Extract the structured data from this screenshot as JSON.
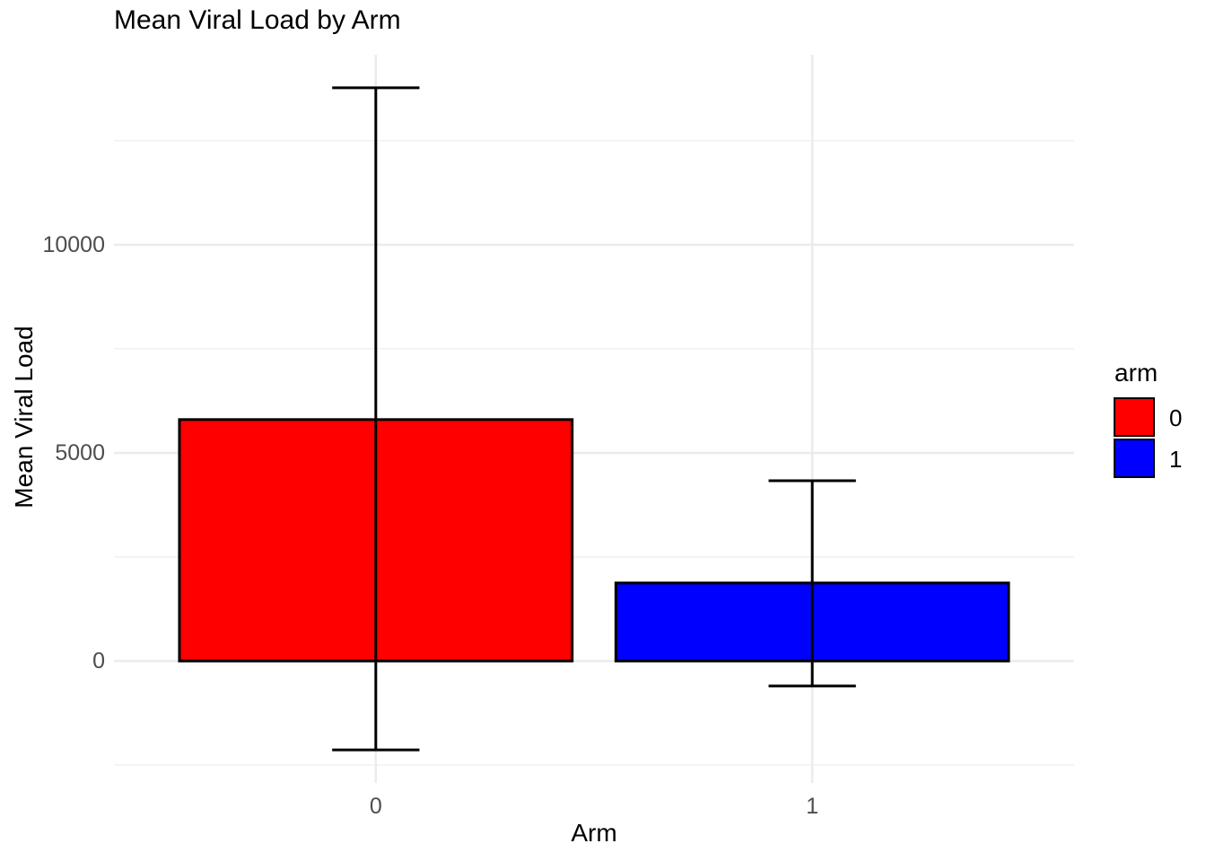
{
  "chart_data": {
    "type": "bar",
    "title": "Mean Viral Load by Arm",
    "xlabel": "Arm",
    "ylabel": "Mean Viral Load",
    "categories": [
      "0",
      "1"
    ],
    "values": [
      5800,
      1875
    ],
    "error_low": [
      -2135,
      -600
    ],
    "error_high": [
      13770,
      4330
    ],
    "bar_colors": [
      "#ff0000",
      "#0000ff"
    ],
    "ylim": [
      -2930,
      14565
    ],
    "y_major_ticks": [
      0,
      5000,
      10000
    ],
    "y_tick_labels": [
      "0",
      "5000",
      "10000"
    ],
    "y_minor_ticks": [
      -2500,
      2500,
      7500,
      12500
    ],
    "x_tick_labels": [
      "0",
      "1"
    ],
    "bar_width_frac": 0.9,
    "errorbar_cap_frac": 0.2,
    "grid": "horizontal major+minor, vertical major at category centers; no axis lines, white background",
    "legend": {
      "title": "arm",
      "position": "right",
      "entries": [
        {
          "label": "0",
          "color": "#ff0000"
        },
        {
          "label": "1",
          "color": "#0000ff"
        }
      ]
    },
    "colors": {
      "background": "#ffffff",
      "grid_major": "#ebebeb",
      "grid_minor": "#f0f0f0",
      "bar_stroke": "#000000",
      "errorbar": "#000000",
      "axis_text": "#4d4d4d",
      "title_text": "#000000"
    }
  }
}
